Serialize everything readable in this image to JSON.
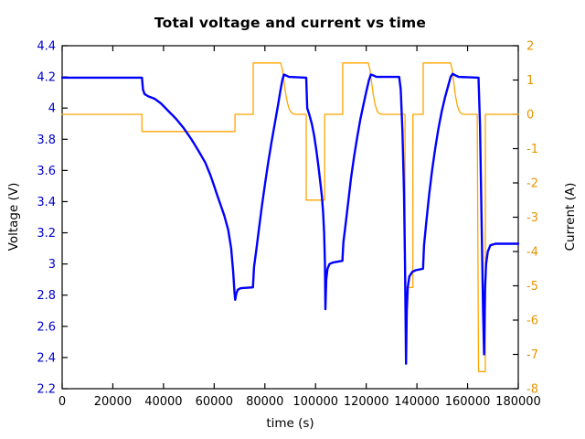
{
  "chart_data": {
    "type": "line",
    "title": "Total voltage and current vs time",
    "xlabel": "time (s)",
    "ylabel": "Voltage (V)",
    "y2label": "Current (A)",
    "xlim": [
      0,
      180000
    ],
    "ylim": [
      2.2,
      4.4
    ],
    "y2lim": [
      -8,
      2
    ],
    "xticks": [
      0,
      20000,
      40000,
      60000,
      80000,
      100000,
      120000,
      140000,
      160000,
      180000
    ],
    "yticks": [
      2.2,
      2.4,
      2.6,
      2.8,
      3,
      3.2,
      3.4,
      3.6,
      3.8,
      4,
      4.2,
      4.4
    ],
    "y2ticks": [
      -8,
      -7,
      -6,
      -5,
      -4,
      -3,
      -2,
      -1,
      0,
      1,
      2
    ],
    "grid": false,
    "legend_position": "none",
    "colors": {
      "voltage_line": "#0000ff",
      "voltage_tick_labels": "#0000d0",
      "current_line": "#ffa500",
      "current_tick_labels": "#e69500",
      "frame": "#000000",
      "text": "#000000"
    },
    "series": [
      {
        "name": "voltage",
        "axis": "y",
        "color": "#0000ff",
        "points": [
          [
            0,
            4.195
          ],
          [
            31500,
            4.195
          ],
          [
            31900,
            4.12
          ],
          [
            32500,
            4.09
          ],
          [
            34000,
            4.075
          ],
          [
            36500,
            4.06
          ],
          [
            39000,
            4.03
          ],
          [
            42000,
            3.98
          ],
          [
            45000,
            3.93
          ],
          [
            48000,
            3.87
          ],
          [
            51000,
            3.8
          ],
          [
            54000,
            3.72
          ],
          [
            56500,
            3.65
          ],
          [
            58500,
            3.57
          ],
          [
            60000,
            3.5
          ],
          [
            61200,
            3.44
          ],
          [
            62500,
            3.38
          ],
          [
            64000,
            3.31
          ],
          [
            65500,
            3.22
          ],
          [
            66700,
            3.1
          ],
          [
            67500,
            2.95
          ],
          [
            68000,
            2.82
          ],
          [
            68300,
            2.77
          ],
          [
            68700,
            2.81
          ],
          [
            69300,
            2.835
          ],
          [
            70500,
            2.845
          ],
          [
            75300,
            2.85
          ],
          [
            75700,
            2.98
          ],
          [
            76600,
            3.09
          ],
          [
            77700,
            3.23
          ],
          [
            78900,
            3.38
          ],
          [
            80100,
            3.52
          ],
          [
            81300,
            3.65
          ],
          [
            82600,
            3.78
          ],
          [
            83900,
            3.9
          ],
          [
            85100,
            4.01
          ],
          [
            86100,
            4.11
          ],
          [
            86900,
            4.18
          ],
          [
            87500,
            4.215
          ],
          [
            88300,
            4.21
          ],
          [
            89500,
            4.2
          ],
          [
            96300,
            4.195
          ],
          [
            96700,
            4.0
          ],
          [
            97500,
            3.96
          ],
          [
            98500,
            3.9
          ],
          [
            99500,
            3.82
          ],
          [
            100400,
            3.72
          ],
          [
            101200,
            3.62
          ],
          [
            101900,
            3.52
          ],
          [
            102500,
            3.43
          ],
          [
            103000,
            3.33
          ],
          [
            103400,
            3.2
          ],
          [
            103700,
            3.0
          ],
          [
            103900,
            2.71
          ],
          [
            104200,
            2.9
          ],
          [
            104700,
            2.97
          ],
          [
            105500,
            3.0
          ],
          [
            107000,
            3.01
          ],
          [
            110600,
            3.02
          ],
          [
            111000,
            3.14
          ],
          [
            111900,
            3.26
          ],
          [
            112900,
            3.4
          ],
          [
            114000,
            3.55
          ],
          [
            115200,
            3.69
          ],
          [
            116400,
            3.81
          ],
          [
            117700,
            3.93
          ],
          [
            119000,
            4.03
          ],
          [
            120100,
            4.11
          ],
          [
            121100,
            4.18
          ],
          [
            121800,
            4.215
          ],
          [
            122800,
            4.21
          ],
          [
            124000,
            4.2
          ],
          [
            133000,
            4.2
          ],
          [
            133600,
            4.12
          ],
          [
            134300,
            3.85
          ],
          [
            134900,
            3.45
          ],
          [
            135300,
            3.0
          ],
          [
            135550,
            2.6
          ],
          [
            135700,
            2.36
          ],
          [
            136000,
            2.7
          ],
          [
            136400,
            2.85
          ],
          [
            137000,
            2.92
          ],
          [
            138200,
            2.95
          ],
          [
            139500,
            2.96
          ],
          [
            142400,
            2.97
          ],
          [
            142800,
            3.12
          ],
          [
            143700,
            3.27
          ],
          [
            144800,
            3.44
          ],
          [
            146000,
            3.6
          ],
          [
            147200,
            3.74
          ],
          [
            148500,
            3.87
          ],
          [
            149800,
            3.98
          ],
          [
            151100,
            4.07
          ],
          [
            152300,
            4.14
          ],
          [
            153300,
            4.2
          ],
          [
            154100,
            4.22
          ],
          [
            155200,
            4.21
          ],
          [
            156500,
            4.2
          ],
          [
            164300,
            4.195
          ],
          [
            164900,
            3.9
          ],
          [
            165500,
            3.3
          ],
          [
            166100,
            2.7
          ],
          [
            166500,
            2.42
          ],
          [
            166900,
            2.85
          ],
          [
            167300,
            3.0
          ],
          [
            168000,
            3.08
          ],
          [
            169000,
            3.12
          ],
          [
            171000,
            3.13
          ],
          [
            180000,
            3.13
          ]
        ]
      },
      {
        "name": "current",
        "axis": "y2",
        "color": "#ffa500",
        "points": [
          [
            0,
            0
          ],
          [
            31500,
            0
          ],
          [
            31500,
            -0.5
          ],
          [
            68200,
            -0.5
          ],
          [
            68200,
            0
          ],
          [
            75400,
            0
          ],
          [
            75400,
            1.5
          ],
          [
            86200,
            1.5
          ],
          [
            86800,
            1.35
          ],
          [
            87400,
            1.05
          ],
          [
            88100,
            0.65
          ],
          [
            88900,
            0.33
          ],
          [
            89700,
            0.13
          ],
          [
            90600,
            0.04
          ],
          [
            91500,
            0.01
          ],
          [
            92500,
            0
          ],
          [
            96300,
            0
          ],
          [
            96300,
            -2.5
          ],
          [
            103600,
            -2.5
          ],
          [
            103600,
            0
          ],
          [
            110700,
            0
          ],
          [
            110700,
            1.5
          ],
          [
            120800,
            1.5
          ],
          [
            121400,
            1.33
          ],
          [
            122000,
            1.0
          ],
          [
            122700,
            0.6
          ],
          [
            123500,
            0.28
          ],
          [
            124300,
            0.1
          ],
          [
            125200,
            0.02
          ],
          [
            126200,
            0
          ],
          [
            135300,
            0
          ],
          [
            135300,
            -5.05
          ],
          [
            138400,
            -5.05
          ],
          [
            138400,
            0
          ],
          [
            142500,
            0
          ],
          [
            142500,
            1.5
          ],
          [
            153300,
            1.5
          ],
          [
            153900,
            1.32
          ],
          [
            154500,
            0.95
          ],
          [
            155200,
            0.55
          ],
          [
            156000,
            0.24
          ],
          [
            156800,
            0.08
          ],
          [
            157700,
            0.01
          ],
          [
            158700,
            0
          ],
          [
            163800,
            0
          ],
          [
            164300,
            -7.5
          ],
          [
            167000,
            -7.5
          ],
          [
            167000,
            0
          ],
          [
            180000,
            0
          ]
        ]
      }
    ]
  }
}
